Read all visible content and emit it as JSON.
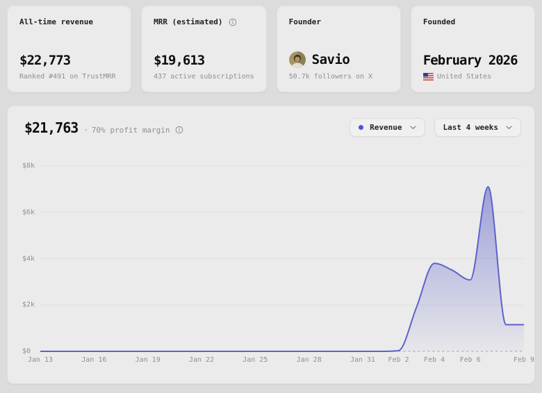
{
  "stat_cards": [
    {
      "label": "All-time revenue",
      "value": "$22,773",
      "sub": "Ranked #491 on TrustMRR"
    },
    {
      "label": "MRR (estimated)",
      "value": "$19,613",
      "sub": "437 active subscriptions"
    },
    {
      "label": "Founder",
      "value": "Savio",
      "sub": "50.7k followers on X"
    },
    {
      "label": "Founded",
      "value": "February 2026",
      "sub": "United States"
    }
  ],
  "chart_header": {
    "total": "$21,763",
    "separator": "·",
    "profit_note": "70% profit margin"
  },
  "controls": {
    "metric_label": "Revenue",
    "range_label": "Last 4 weeks",
    "metric_dot_color": "#4b53d2"
  },
  "chart_data": {
    "type": "area",
    "series_name": "Revenue",
    "x": [
      "Jan 13",
      "Jan 14",
      "Jan 15",
      "Jan 16",
      "Jan 17",
      "Jan 18",
      "Jan 19",
      "Jan 20",
      "Jan 21",
      "Jan 22",
      "Jan 23",
      "Jan 24",
      "Jan 25",
      "Jan 26",
      "Jan 27",
      "Jan 28",
      "Jan 29",
      "Jan 30",
      "Jan 31",
      "Feb 1",
      "Feb 2",
      "Feb 3",
      "Feb 4",
      "Feb 5",
      "Feb 6",
      "Feb 7",
      "Feb 8",
      "Feb 9"
    ],
    "values": [
      0,
      0,
      0,
      0,
      0,
      0,
      0,
      0,
      0,
      0,
      0,
      0,
      0,
      0,
      0,
      0,
      0,
      0,
      0,
      0,
      30,
      1900,
      3800,
      3500,
      3080,
      7100,
      1150,
      1150
    ],
    "ylim": [
      0,
      8000
    ],
    "yticks": [
      {
        "label": "$8k",
        "v": 8000
      },
      {
        "label": "$6k",
        "v": 6000
      },
      {
        "label": "$4k",
        "v": 4000
      },
      {
        "label": "$2k",
        "v": 2000
      },
      {
        "label": "$0",
        "v": 0
      }
    ],
    "xticks": [
      {
        "label": "Jan 13",
        "i": 0
      },
      {
        "label": "Jan 16",
        "i": 3
      },
      {
        "label": "Jan 19",
        "i": 6
      },
      {
        "label": "Jan 22",
        "i": 9
      },
      {
        "label": "Jan 25",
        "i": 12
      },
      {
        "label": "Jan 28",
        "i": 15
      },
      {
        "label": "Jan 31",
        "i": 18
      },
      {
        "label": "Feb 2",
        "i": 20
      },
      {
        "label": "Feb 4",
        "i": 22
      },
      {
        "label": "Feb 6",
        "i": 24
      },
      {
        "label": "Feb 9",
        "i": 27
      }
    ],
    "colors": {
      "line": "#5b62c9",
      "fill_top": "rgba(91,98,201,0.55)",
      "fill_bottom": "rgba(91,98,201,0.03)",
      "grid": "#e0e0e0",
      "zero_dash": "#a3a3a3"
    },
    "grid": true,
    "legend_position": "none"
  }
}
